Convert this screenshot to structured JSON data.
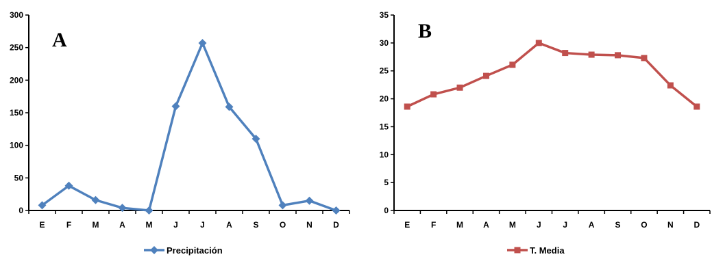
{
  "chart_data": [
    {
      "type": "line",
      "panel_label": "A",
      "categories": [
        "E",
        "F",
        "M",
        "A",
        "M",
        "J",
        "J",
        "A",
        "S",
        "O",
        "N",
        "D"
      ],
      "series": [
        {
          "name": "Precipitación",
          "values": [
            8,
            38,
            16,
            4,
            0,
            160,
            257,
            159,
            110,
            8,
            15,
            0
          ],
          "color": "#4f81bd",
          "marker": "diamond"
        }
      ],
      "ylim": [
        0,
        300
      ],
      "yticks": [
        0,
        50,
        100,
        150,
        200,
        250,
        300
      ],
      "grid": false,
      "legend_position": "bottom"
    },
    {
      "type": "line",
      "panel_label": "B",
      "categories": [
        "E",
        "F",
        "M",
        "A",
        "M",
        "J",
        "J",
        "A",
        "S",
        "O",
        "N",
        "D"
      ],
      "series": [
        {
          "name": "T. Media",
          "values": [
            18.6,
            20.8,
            22.0,
            24.1,
            26.1,
            30.0,
            28.2,
            27.9,
            27.8,
            27.3,
            22.4,
            18.6
          ],
          "color": "#c0504d",
          "marker": "square"
        }
      ],
      "ylim": [
        0,
        35
      ],
      "yticks": [
        0,
        5,
        10,
        15,
        20,
        25,
        30,
        35
      ],
      "grid": false,
      "legend_position": "bottom"
    }
  ]
}
